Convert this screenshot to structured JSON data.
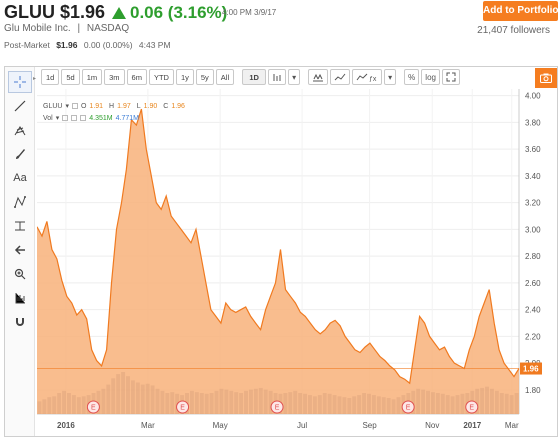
{
  "header": {
    "ticker": "GLUU",
    "price": "$1.96",
    "change": "0.06 (3.16%)",
    "timestamp": "4:00 PM 3/9/17",
    "company": "Glu Mobile Inc.",
    "separator": "|",
    "exchange": "NASDAQ",
    "postmarket_label": "Post-Market",
    "postmarket_price": "$1.96",
    "postmarket_change": "0.00 (0.00%)",
    "postmarket_time": "4:43 PM",
    "add_button": "Add to Portfolio",
    "followers": "21,407 followers",
    "accent_color": "#f57d20",
    "up_color": "#2e9e2e"
  },
  "toolbar": {
    "periods": [
      "1d",
      "5d",
      "1m",
      "3m",
      "6m",
      "YTD",
      "1y",
      "5y",
      "All"
    ],
    "interval": "1D",
    "pct_label": "%",
    "log_label": "log",
    "tool_icons": [
      "crosshair-icon",
      "line-icon",
      "fib-icon",
      "brush-icon",
      "text-icon",
      "pattern-icon",
      "measure-icon",
      "back-arrow-icon",
      "zoom-icon",
      "bars-icon",
      "magnet-icon"
    ],
    "text_tool_label": "Aa"
  },
  "legend": {
    "symbol": "GLUU",
    "o_label": "O",
    "o": "1.91",
    "h_label": "H",
    "h": "1.97",
    "l_label": "L",
    "l": "1.90",
    "c_label": "C",
    "c": "1.96",
    "vol_label": "Vol",
    "vol_a": "4.351M",
    "vol_b": "4.771M"
  },
  "chart_data": {
    "type": "area",
    "title": "",
    "xlabel": "",
    "ylabel": "",
    "x_ticks": [
      "2016",
      "Mar",
      "May",
      "Jul",
      "Sep",
      "Nov",
      "2017",
      "Mar"
    ],
    "y_ticks": [
      "1.80",
      "2.00",
      "2.20",
      "2.40",
      "2.60",
      "2.80",
      "3.00",
      "3.20",
      "3.40",
      "3.60",
      "3.80",
      "4.00"
    ],
    "ylim": [
      1.62,
      4.05
    ],
    "last_value": "1.96",
    "last_value_num": 1.96,
    "earnings_label": "E",
    "earnings_positions": [
      0.117,
      0.302,
      0.498,
      0.77,
      0.902
    ],
    "series": [
      {
        "values": [
          3.02,
          2.95,
          3.06,
          2.85,
          2.78,
          2.62,
          2.5,
          2.45,
          2.36,
          2.4,
          2.33,
          2.1,
          2.02,
          1.98,
          2.1,
          2.6,
          3.0,
          3.2,
          3.45,
          3.82,
          3.78,
          3.9,
          3.6,
          3.4,
          3.2,
          3.15,
          3.25,
          3.1,
          3.05,
          3.0,
          2.95,
          2.9,
          3.0,
          2.8,
          2.6,
          2.4,
          2.35,
          2.3,
          2.45,
          2.4,
          2.38,
          2.4,
          2.42,
          2.35,
          2.3,
          2.25,
          2.4,
          2.5,
          2.6,
          2.85,
          2.55,
          2.5,
          2.45,
          2.38,
          2.35,
          2.3,
          2.25,
          2.22,
          2.25,
          2.3,
          2.32,
          2.28,
          2.2,
          2.15,
          2.1,
          2.08,
          2.12,
          2.15,
          2.1,
          2.05,
          2.02,
          1.98,
          1.95,
          1.9,
          1.88,
          1.85,
          2.1,
          2.35,
          2.3,
          2.2,
          2.15,
          2.1,
          2.12,
          2.05,
          2.0,
          1.98,
          1.96,
          2.1,
          2.2,
          2.35,
          2.45,
          2.55,
          2.3,
          2.1,
          2.0,
          1.95,
          1.9,
          1.96
        ]
      }
    ],
    "volume_series": [
      0.3,
      0.35,
      0.4,
      0.42,
      0.5,
      0.55,
      0.5,
      0.45,
      0.4,
      0.42,
      0.45,
      0.5,
      0.55,
      0.6,
      0.7,
      0.85,
      0.95,
      1.0,
      0.9,
      0.8,
      0.75,
      0.7,
      0.72,
      0.68,
      0.6,
      0.55,
      0.5,
      0.52,
      0.48,
      0.45,
      0.5,
      0.55,
      0.52,
      0.5,
      0.48,
      0.5,
      0.55,
      0.6,
      0.58,
      0.55,
      0.52,
      0.5,
      0.55,
      0.58,
      0.6,
      0.62,
      0.58,
      0.55,
      0.5,
      0.48,
      0.5,
      0.52,
      0.55,
      0.5,
      0.48,
      0.45,
      0.42,
      0.45,
      0.5,
      0.48,
      0.45,
      0.42,
      0.4,
      0.38,
      0.42,
      0.45,
      0.5,
      0.48,
      0.45,
      0.42,
      0.4,
      0.38,
      0.35,
      0.4,
      0.45,
      0.5,
      0.55,
      0.6,
      0.58,
      0.55,
      0.52,
      0.5,
      0.48,
      0.45,
      0.42,
      0.45,
      0.48,
      0.5,
      0.55,
      0.6,
      0.62,
      0.65,
      0.6,
      0.55,
      0.5,
      0.48,
      0.45,
      0.5
    ],
    "line_color": "#f07a20",
    "fill_color": "#f8b27a",
    "volume_color": "#cfcfcf"
  }
}
